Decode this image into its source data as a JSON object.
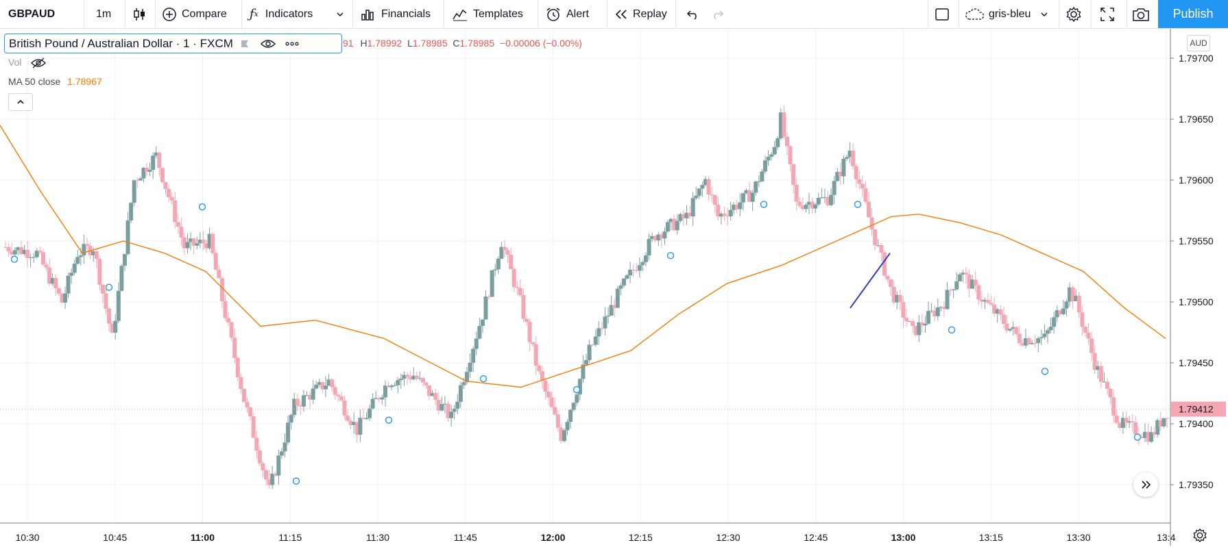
{
  "toolbar": {
    "symbol": "GBPAUD",
    "interval": "1m",
    "compare": "Compare",
    "indicators": "Indicators",
    "financials": "Financials",
    "templates": "Templates",
    "alert": "Alert",
    "replay": "Replay",
    "layout_name": "gris-bleu",
    "publish": "Publish"
  },
  "legend": {
    "title": "British Pound / Australian Dollar · 1 · FXCM",
    "ohlc_partial": "91",
    "high_label": "H",
    "high": "1.78992",
    "low_label": "L",
    "low": "1.78985",
    "close_label": "C",
    "close": "1.78985",
    "change": "−0.00006 (−0.00%)",
    "vol_label": "Vol",
    "ma_label": "MA 50 close",
    "ma_value": "1.78967"
  },
  "price_axis": {
    "currency": "AUD",
    "ticks": [
      "1.79700",
      "1.79650",
      "1.79600",
      "1.79550",
      "1.79500",
      "1.79450",
      "1.79400",
      "1.79350"
    ],
    "current_price": "1.79412"
  },
  "time_axis": {
    "ticks": [
      "10:30",
      "10:45",
      "11:00",
      "11:15",
      "11:30",
      "11:45",
      "12:00",
      "12:15",
      "12:30",
      "12:45",
      "13:00",
      "13:15",
      "13:30",
      "13:4"
    ]
  },
  "colors": {
    "up": "#7a9e9f",
    "down": "#f4a6b2",
    "ma": "#f57c00",
    "drawing": "#2d3bbf",
    "grid": "#eef0f3",
    "accent": "#2196f3"
  },
  "icons": {
    "candles": "candlestick-icon",
    "compare": "plus-circle-icon",
    "indicators": "fx-icon",
    "financials": "bar-chart-icon",
    "templates": "templates-icon",
    "alert": "alarm-clock-icon",
    "replay": "rewind-icon",
    "undo": "undo-icon",
    "redo": "redo-icon",
    "layout": "square-icon",
    "cloud": "cloud-icon",
    "settings": "gear-icon",
    "fullscreen": "fullscreen-icon",
    "snapshot": "camera-icon"
  }
}
